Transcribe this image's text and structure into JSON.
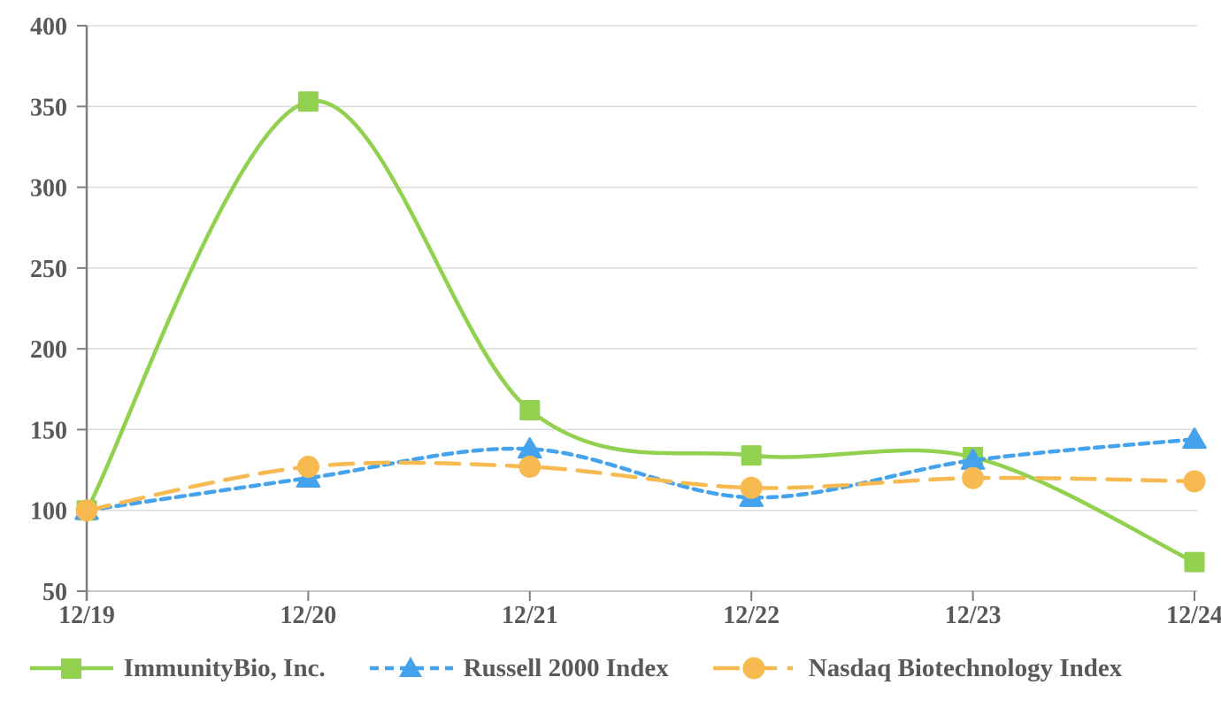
{
  "chart_data": {
    "type": "line",
    "categories": [
      "12/19",
      "12/20",
      "12/21",
      "12/22",
      "12/23",
      "12/24"
    ],
    "series": [
      {
        "name": "ImmunityBio, Inc.",
        "values": [
          100,
          353,
          162,
          134,
          133,
          68
        ],
        "color": "#92D050",
        "marker": "square",
        "line_style": "solid"
      },
      {
        "name": "Russell 2000 Index",
        "values": [
          100,
          120,
          138,
          108,
          131,
          144
        ],
        "color": "#45A2EC",
        "marker": "triangle",
        "line_style": "dashed"
      },
      {
        "name": "Nasdaq Biotechnology Index",
        "values": [
          100,
          127,
          127,
          114,
          120,
          118
        ],
        "color": "#F7BA51",
        "marker": "circle",
        "line_style": "long-dash"
      }
    ],
    "ylim": [
      50,
      400
    ],
    "yticks": [
      400,
      350,
      300,
      250,
      200,
      150,
      100,
      50
    ],
    "grid": "horizontal",
    "legend_position": "bottom",
    "line_smoothing": true
  },
  "colors": {
    "background": "#FFFFFF",
    "axis_text": "#595959",
    "gridline": "#DADADA",
    "y_axis_line": "#7F7F7F",
    "x_axis_line": "#C6C6C6",
    "tick": "#7F7F7F"
  }
}
